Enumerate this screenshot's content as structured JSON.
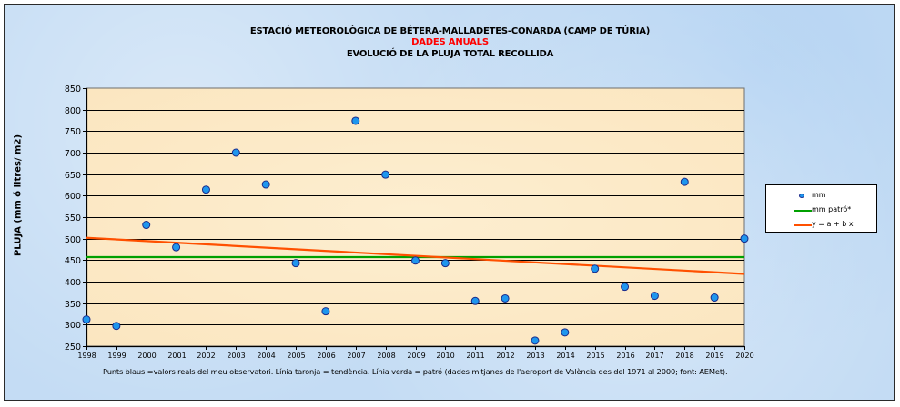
{
  "chart_data": {
    "type": "scatter",
    "title": "ESTACIÓ METEOROLÒGICA DE BÉTERA-MALLADETES-CONARDA (CAMP DE TÚRIA)",
    "subtitle_red": "DADES ANUALS",
    "subtitle": "EVOLUCIÓ DE LA PLUJA TOTAL RECOLLIDA",
    "xlabel": "",
    "ylabel": "PLUJA (mm ó litres/ m2)",
    "xlim": [
      1998,
      2020
    ],
    "ylim": [
      250,
      850
    ],
    "yticks": [
      250,
      300,
      350,
      400,
      450,
      500,
      550,
      600,
      650,
      700,
      750,
      800,
      850
    ],
    "xticks": [
      1998,
      1999,
      2000,
      2001,
      2002,
      2003,
      2004,
      2005,
      2006,
      2007,
      2008,
      2009,
      2010,
      2011,
      2012,
      2013,
      2014,
      2015,
      2016,
      2017,
      2018,
      2019,
      2020
    ],
    "grid": true,
    "legend_position": "right",
    "series": [
      {
        "name": "mm",
        "kind": "points",
        "color": "#1e96ee",
        "x": [
          1998,
          1999,
          2000,
          2001,
          2002,
          2003,
          2004,
          2005,
          2006,
          2007,
          2008,
          2009,
          2010,
          2011,
          2012,
          2013,
          2014,
          2015,
          2016,
          2017,
          2018,
          2019,
          2020
        ],
        "values": [
          312,
          297,
          532,
          480,
          614,
          700,
          626,
          443,
          331,
          774,
          649,
          449,
          443,
          355,
          361,
          263,
          282,
          430,
          388,
          367,
          632,
          363,
          500
        ]
      },
      {
        "name": "mm patró*",
        "kind": "line",
        "color": "#00a000",
        "x": [
          1998,
          2020
        ],
        "values": [
          457,
          457
        ]
      },
      {
        "name": "y = a + b x",
        "kind": "line",
        "color": "#ff5000",
        "x": [
          1998,
          2020
        ],
        "values": [
          502,
          418
        ]
      }
    ],
    "footnote": "Punts blaus =valors reals del meu observatori. Línia taronja = tendència. Línia verda = patró (dades mitjanes de l'aeroport de València des del 1971 al 2000; font: AEMet)."
  }
}
